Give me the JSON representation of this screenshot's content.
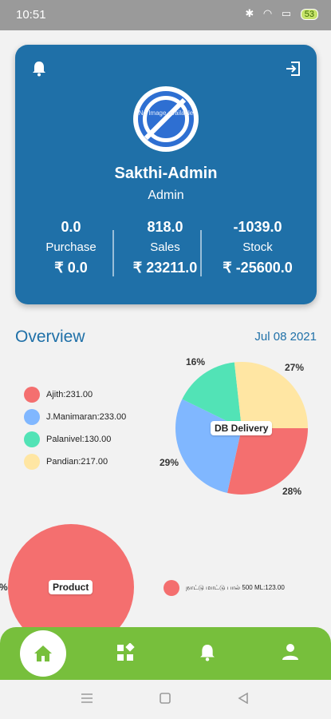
{
  "status_bar": {
    "time": "10:51",
    "icons": "✱ ◠ ▭",
    "battery": "53"
  },
  "profile": {
    "avatar_text": "No Image available",
    "name": "Sakthi-Admin",
    "role": "Admin",
    "stats": [
      {
        "value": "0.0",
        "label": "Purchase",
        "amount": "₹ 0.0"
      },
      {
        "value": "818.0",
        "label": "Sales",
        "amount": "₹ 23211.0"
      },
      {
        "value": "-1039.0",
        "label": "Stock",
        "amount": "₹ -25600.0"
      }
    ]
  },
  "overview": {
    "title": "Overview",
    "date": "Jul 08 2021"
  },
  "db_delivery_chart": {
    "legend": [
      "Ajith:231.00",
      "J.Manimaran:233.00",
      "Palanivel:130.00",
      "Pandian:217.00"
    ],
    "center_label": "DB Delivery",
    "percent_labels": [
      "16%",
      "27%",
      "29%",
      "28%"
    ]
  },
  "product_chart": {
    "center_label": "Product",
    "percent_label": "%",
    "legend": [
      "நாட்டு மாட்டு பால் 500 ML:123.00"
    ]
  },
  "colors": {
    "header": "#1f70a8",
    "nav": "#77bf3c",
    "ajith": "#f46f6f",
    "manimaran": "#80b7ff",
    "palanivel": "#52e3b6",
    "pandian": "#ffe6a3"
  },
  "chart_data": [
    {
      "type": "pie",
      "title": "DB Delivery",
      "categories": [
        "Ajith",
        "J.Manimaran",
        "Palanivel",
        "Pandian"
      ],
      "values": [
        231.0,
        233.0,
        130.0,
        217.0
      ],
      "percent_labels": [
        "28%",
        "29%",
        "16%",
        "27%"
      ],
      "colors": [
        "#f46f6f",
        "#80b7ff",
        "#52e3b6",
        "#ffe6a3"
      ]
    },
    {
      "type": "pie",
      "title": "Product",
      "categories": [
        "நாட்டு மாட்டு பால் 500 ML"
      ],
      "values": [
        123.0
      ],
      "colors": [
        "#f46f6f"
      ]
    }
  ]
}
